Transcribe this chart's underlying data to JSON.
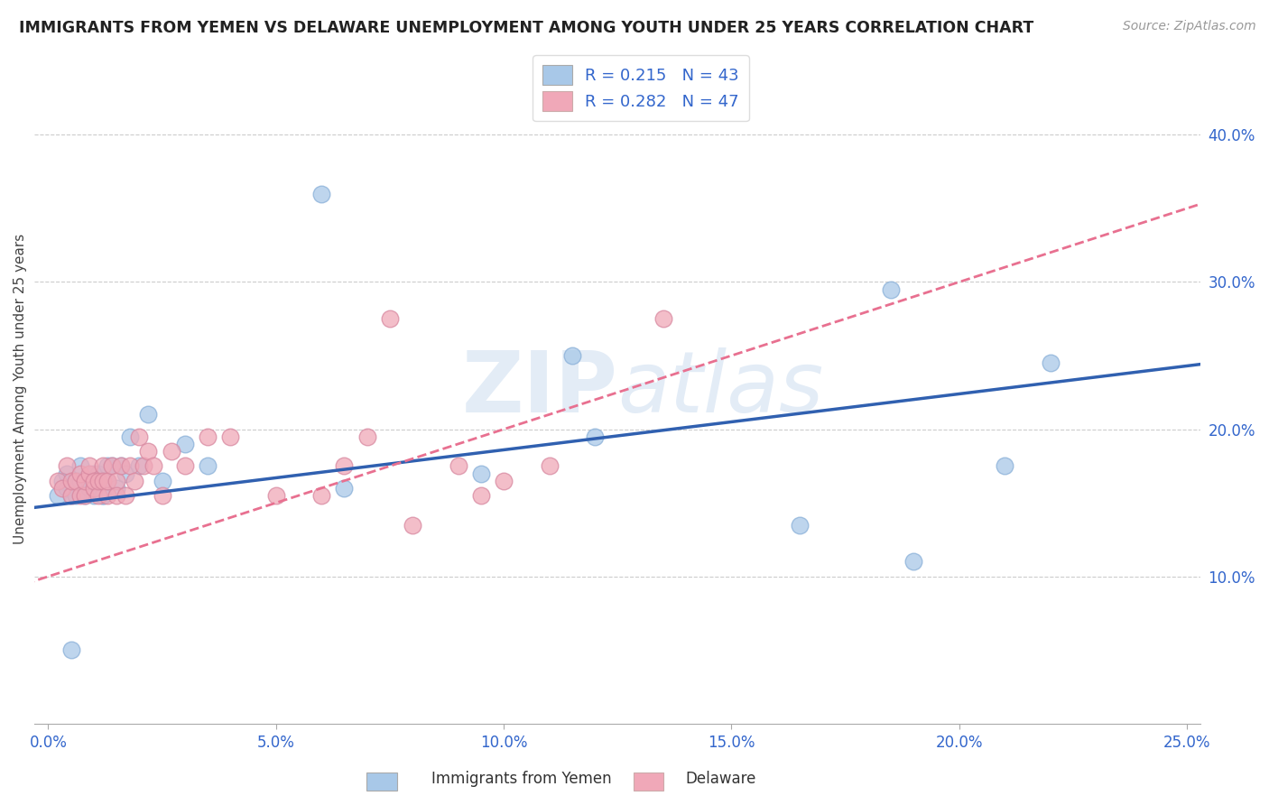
{
  "title": "IMMIGRANTS FROM YEMEN VS DELAWARE UNEMPLOYMENT AMONG YOUTH UNDER 25 YEARS CORRELATION CHART",
  "source": "Source: ZipAtlas.com",
  "ylabel": "Unemployment Among Youth under 25 years",
  "xlabel_blue": "Immigrants from Yemen",
  "xlabel_pink": "Delaware",
  "xlim": [
    0.0,
    0.25
  ],
  "ylim": [
    0.0,
    0.45
  ],
  "xtick_vals": [
    0.0,
    0.05,
    0.1,
    0.15,
    0.2,
    0.25
  ],
  "xtick_labels": [
    "0.0%",
    "5.0%",
    "10.0%",
    "15.0%",
    "20.0%",
    "25.0%"
  ],
  "ytick_positions": [
    0.1,
    0.2,
    0.3,
    0.4
  ],
  "ytick_labels": [
    "10.0%",
    "20.0%",
    "30.0%",
    "40.0%"
  ],
  "blue_color": "#a8c8e8",
  "pink_color": "#f0a8b8",
  "trend_blue_color": "#3060b0",
  "trend_pink_color": "#e87090",
  "watermark": "ZIPatlas",
  "blue_x": [
    0.002,
    0.003,
    0.004,
    0.004,
    0.005,
    0.005,
    0.006,
    0.006,
    0.007,
    0.007,
    0.008,
    0.008,
    0.009,
    0.009,
    0.01,
    0.01,
    0.01,
    0.011,
    0.011,
    0.012,
    0.012,
    0.013,
    0.013,
    0.014,
    0.015,
    0.016,
    0.017,
    0.018,
    0.02,
    0.022,
    0.025,
    0.03,
    0.035,
    0.06,
    0.065,
    0.095,
    0.115,
    0.12,
    0.165,
    0.185,
    0.19,
    0.21,
    0.22
  ],
  "blue_y": [
    0.155,
    0.165,
    0.17,
    0.16,
    0.155,
    0.05,
    0.155,
    0.165,
    0.165,
    0.175,
    0.165,
    0.155,
    0.16,
    0.165,
    0.155,
    0.17,
    0.165,
    0.165,
    0.17,
    0.155,
    0.155,
    0.175,
    0.165,
    0.175,
    0.16,
    0.175,
    0.17,
    0.195,
    0.175,
    0.21,
    0.165,
    0.19,
    0.175,
    0.36,
    0.16,
    0.17,
    0.25,
    0.195,
    0.135,
    0.295,
    0.11,
    0.175,
    0.245
  ],
  "pink_x": [
    0.002,
    0.003,
    0.004,
    0.005,
    0.005,
    0.006,
    0.007,
    0.007,
    0.008,
    0.008,
    0.009,
    0.009,
    0.01,
    0.01,
    0.011,
    0.011,
    0.012,
    0.012,
    0.013,
    0.013,
    0.014,
    0.015,
    0.015,
    0.016,
    0.017,
    0.018,
    0.019,
    0.02,
    0.021,
    0.022,
    0.023,
    0.025,
    0.027,
    0.03,
    0.035,
    0.04,
    0.05,
    0.06,
    0.065,
    0.07,
    0.075,
    0.08,
    0.09,
    0.095,
    0.1,
    0.11,
    0.135
  ],
  "pink_y": [
    0.165,
    0.16,
    0.175,
    0.155,
    0.165,
    0.165,
    0.155,
    0.17,
    0.155,
    0.165,
    0.17,
    0.175,
    0.16,
    0.165,
    0.155,
    0.165,
    0.175,
    0.165,
    0.155,
    0.165,
    0.175,
    0.165,
    0.155,
    0.175,
    0.155,
    0.175,
    0.165,
    0.195,
    0.175,
    0.185,
    0.175,
    0.155,
    0.185,
    0.175,
    0.195,
    0.195,
    0.155,
    0.155,
    0.175,
    0.195,
    0.275,
    0.135,
    0.175,
    0.155,
    0.165,
    0.175,
    0.275
  ],
  "trend_blue_intercept": 0.148,
  "trend_blue_slope": 0.38,
  "trend_pink_intercept": 0.1,
  "trend_pink_slope": 1.0
}
